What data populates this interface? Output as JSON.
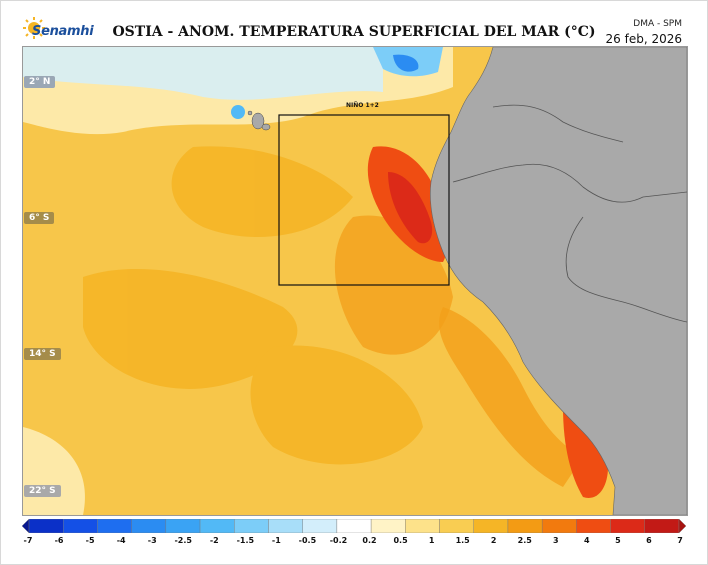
{
  "header": {
    "logo_text": "Senamhi",
    "title": "OSTIA - ANOM. TEMPERATURA SUPERFICIAL DEL MAR (°C)",
    "credit": "DMA - SPM",
    "date": "26 feb, 2026"
  },
  "map": {
    "region_label": "NIÑO 1+2",
    "latitude_labels": [
      "2° N",
      "6° S",
      "14° S",
      "22° S"
    ],
    "land_color": "#a9a9a9",
    "ocean_base_color": "#f7c64a"
  },
  "colorbar": {
    "ticks": [
      "-7",
      "-6",
      "-5",
      "-4",
      "-3",
      "-2.5",
      "-2",
      "-1.5",
      "-1",
      "-0.5",
      "-0.2",
      "0.2",
      "0.5",
      "1",
      "1.5",
      "2",
      "2.5",
      "3",
      "4",
      "5",
      "6",
      "7"
    ],
    "colors": [
      "#08188f",
      "#0b30c8",
      "#1450e6",
      "#1e6ef0",
      "#2b8cf2",
      "#3aa3f4",
      "#52b9f6",
      "#7ccdf8",
      "#a8def9",
      "#d3eefb",
      "#ffffff",
      "#fff3c6",
      "#fde28a",
      "#f9cd52",
      "#f5b526",
      "#f39b14",
      "#f27a0e",
      "#ef4d12",
      "#dc2a18",
      "#c21a16",
      "#a61410"
    ]
  }
}
